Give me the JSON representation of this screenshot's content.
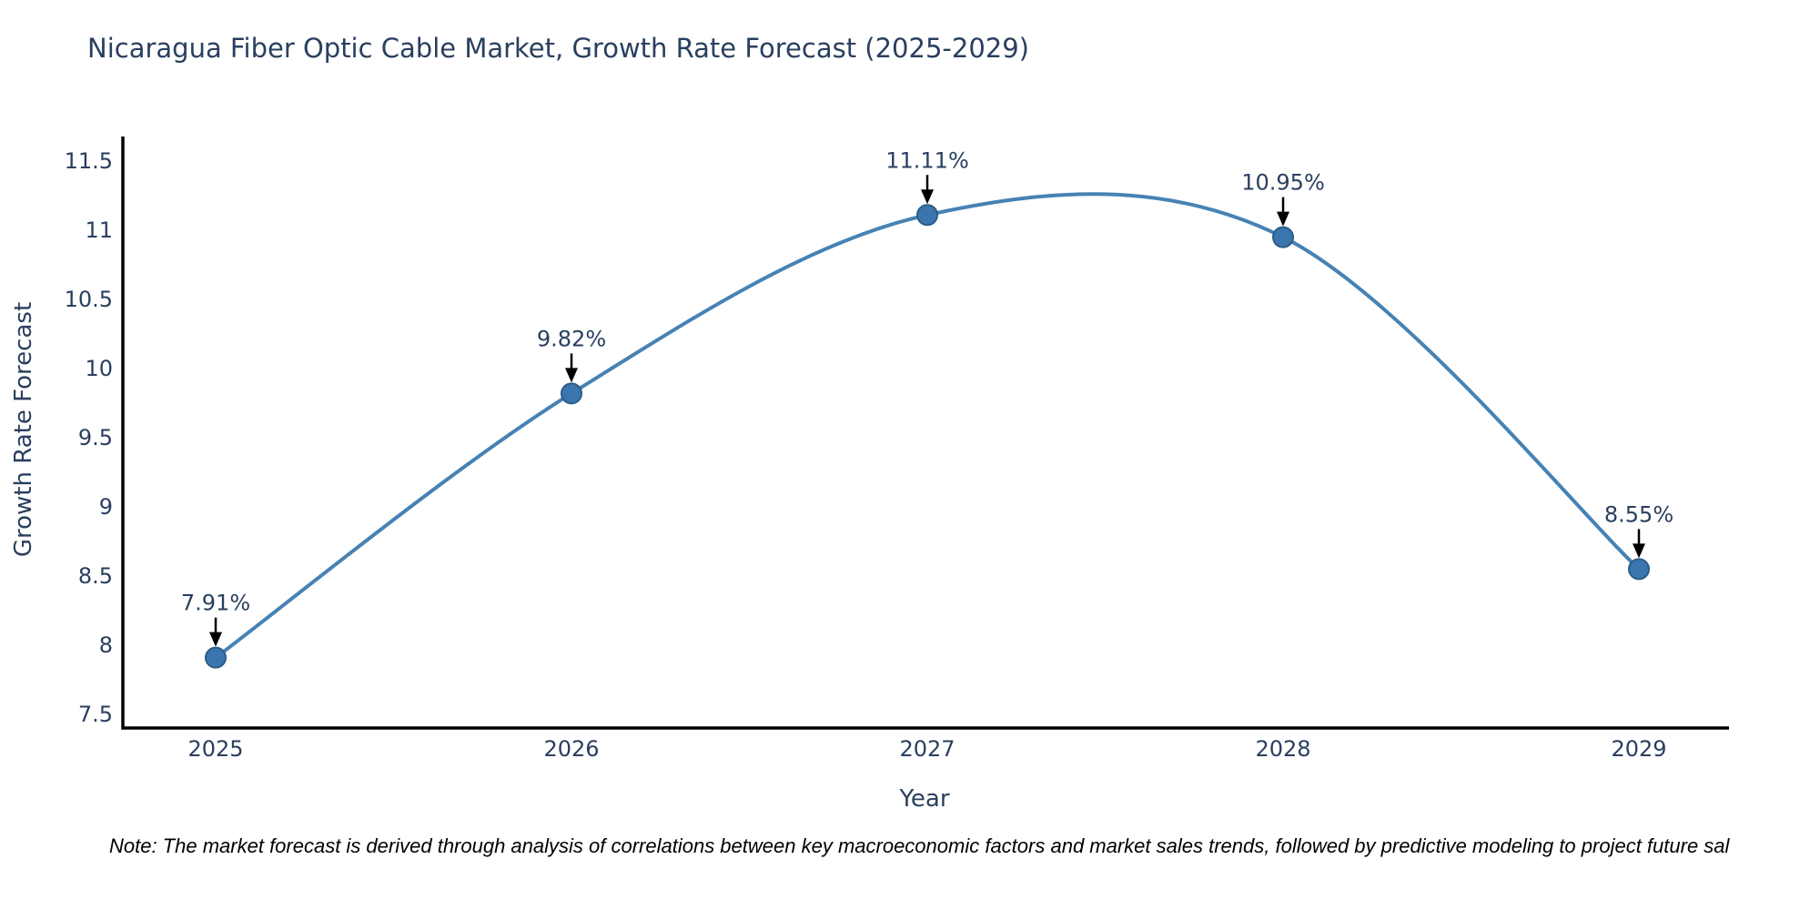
{
  "title": {
    "text": "Nicaragua Fiber Optic Cable Market, Growth Rate Forecast (2025-2029)"
  },
  "note": {
    "text": "Note: The market forecast is derived through analysis of correlations between key macroeconomic factors and market sales trends, followed by predictive modeling to project future sal"
  },
  "chart_data": {
    "type": "line",
    "title": "Nicaragua Fiber Optic Cable Market, Growth Rate Forecast (2025-2029)",
    "xlabel": "Year",
    "ylabel": "Growth Rate Forecast",
    "x": [
      2025,
      2026,
      2027,
      2028,
      2029
    ],
    "xtick_labels": [
      "2025",
      "2026",
      "2027",
      "2028",
      "2029"
    ],
    "series": [
      {
        "name": "Growth Rate Forecast",
        "values": [
          7.91,
          9.82,
          11.11,
          10.95,
          8.55
        ]
      }
    ],
    "point_labels": [
      "7.91%",
      "9.82%",
      "11.11%",
      "10.95%",
      "8.55%"
    ],
    "ylim": [
      7.5,
      11.5
    ],
    "yticks": [
      7.5,
      8,
      8.5,
      9,
      9.5,
      10,
      10.5,
      11,
      11.5
    ],
    "ytick_labels": [
      "7.5",
      "8",
      "8.5",
      "9",
      "9.5",
      "10",
      "10.5",
      "11",
      "11.5"
    ],
    "line_shape": "spline",
    "grid": false,
    "legend": "none",
    "colors": {
      "line": "#4682b4",
      "marker_fill": "#3a76ad",
      "marker_edge": "#2b5c88",
      "arrow": "#000000",
      "text": "#2a3f5f",
      "axis": "#000000",
      "note_text": "#000000",
      "background": "#ffffff"
    }
  }
}
